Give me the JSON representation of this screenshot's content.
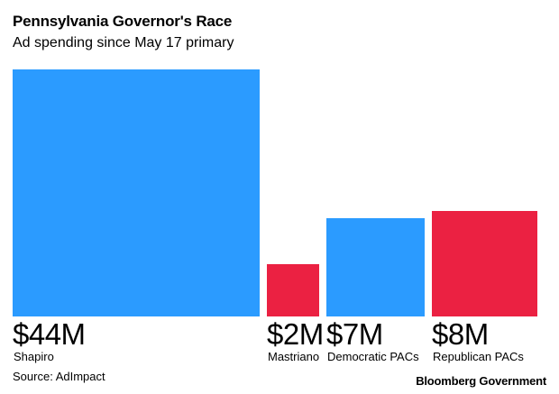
{
  "title": "Pennsylvania Governor's Race",
  "subtitle": "Ad spending since May 17 primary",
  "source": "Source: AdImpact",
  "brand": "Bloomberg Government",
  "colors": {
    "democratic": "#2b9bff",
    "republican": "#eb2142"
  },
  "chart_data": {
    "type": "bar",
    "variant": "area-proportional squares",
    "title": "Pennsylvania Governor's Race",
    "subtitle": "Ad spending since May 17 primary",
    "categories": [
      "Shapiro",
      "Mastriano",
      "Democratic PACs",
      "Republican PACs"
    ],
    "values": [
      44,
      2,
      7,
      8
    ],
    "unit": "$M",
    "value_labels": [
      "$44M",
      "$2M",
      "$7M",
      "$8M"
    ],
    "party": [
      "democratic",
      "republican",
      "democratic",
      "republican"
    ]
  }
}
